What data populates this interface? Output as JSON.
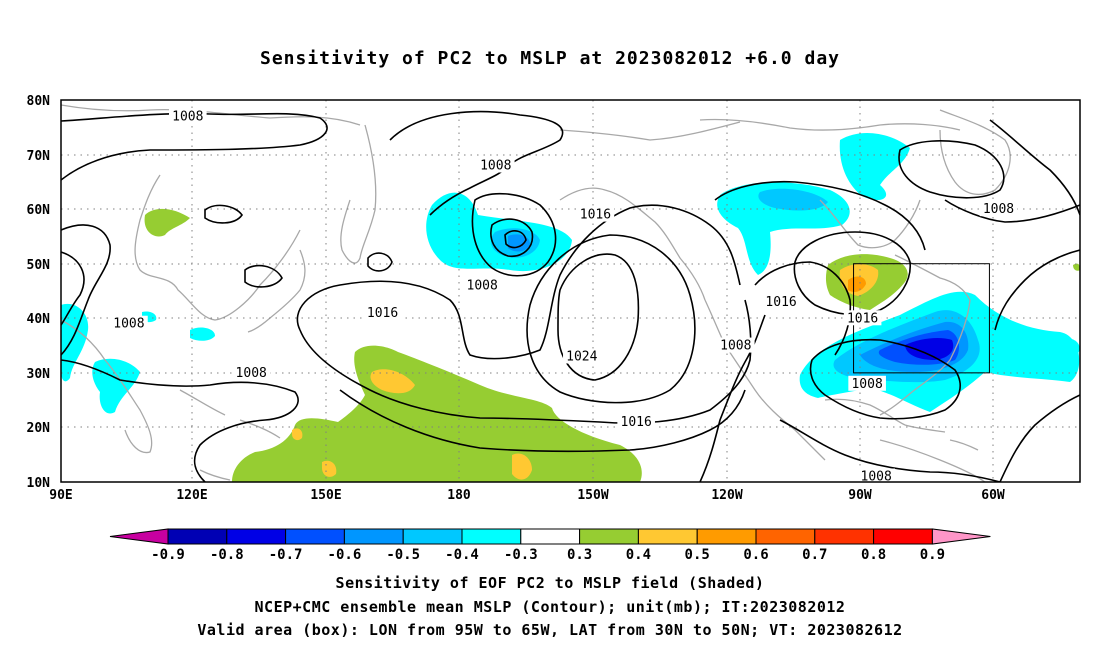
{
  "title": "Sensitivity of PC2 to MSLP at 2023082012 +6.0 day",
  "lon_labels": [
    "90E",
    "120E",
    "150E",
    "180",
    "150W",
    "120W",
    "90W",
    "60W"
  ],
  "lat_labels": [
    "80N",
    "70N",
    "60N",
    "50N",
    "40N",
    "30N",
    "20N",
    "10N"
  ],
  "contour_labels": [
    {
      "text": "1008",
      "lon": 118,
      "lat": 77
    },
    {
      "text": "1008",
      "lon": -174,
      "lat": 68
    },
    {
      "text": "1016",
      "lon": -152,
      "lat": 59
    },
    {
      "text": "1008",
      "lon": -177,
      "lat": 46
    },
    {
      "text": "1016",
      "lon": 161,
      "lat": 41
    },
    {
      "text": "1008",
      "lon": 105,
      "lat": 39
    },
    {
      "text": "1024",
      "lon": -155,
      "lat": 33
    },
    {
      "text": "1008",
      "lon": -121,
      "lat": 35
    },
    {
      "text": "1016",
      "lon": -111,
      "lat": 43
    },
    {
      "text": "1016",
      "lon": -93,
      "lat": 40
    },
    {
      "text": "1008",
      "lon": 132,
      "lat": 30
    },
    {
      "text": "1008",
      "lon": -92,
      "lat": 28
    },
    {
      "text": "1016",
      "lon": -143,
      "lat": 21
    },
    {
      "text": "1008",
      "lon": -90,
      "lat": 11
    },
    {
      "text": "1008",
      "lon": -63,
      "lat": 60
    }
  ],
  "valid_box": {
    "lon_min": -95,
    "lon_max": -65,
    "lat_min": 30,
    "lat_max": 50
  },
  "colorbar": {
    "labels": [
      "-0.9",
      "-0.8",
      "-0.7",
      "-0.6",
      "-0.5",
      "-0.4",
      "-0.3",
      "0.3",
      "0.4",
      "0.5",
      "0.6",
      "0.7",
      "0.8",
      "0.9"
    ],
    "colors": [
      "#0000b4",
      "#0000e6",
      "#0050ff",
      "#0096ff",
      "#00c8ff",
      "#00ffff",
      "#ffffff",
      "#96cd32",
      "#ffc832",
      "#ff9b00",
      "#ff6400",
      "#ff3200",
      "#ff0000"
    ],
    "low_end_color": "#c800a0",
    "high_end_color": "#ff96c8"
  },
  "captions": [
    "Sensitivity of EOF PC2 to MSLP field (Shaded)",
    "NCEP+CMC ensemble mean MSLP (Contour); unit(mb); IT:2023082012",
    "Valid area (box): LON from 95W to 65W, LAT from 30N to 50N; VT: 2023082612"
  ]
}
